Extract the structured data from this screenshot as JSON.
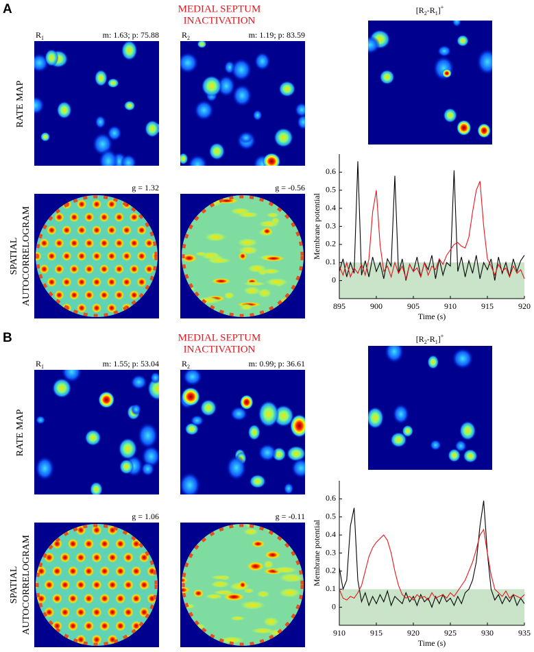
{
  "panels": [
    {
      "label": "A",
      "title_lines": [
        "MEDIAL SEPTUM",
        "INACTIVATION"
      ],
      "diff_title": [
        {
          "t": "[R"
        },
        {
          "t": "2",
          "pos": "sub"
        },
        {
          "t": "-R"
        },
        {
          "t": "1",
          "pos": "sub"
        },
        {
          "t": "]"
        },
        {
          "t": "+",
          "pos": "sup"
        }
      ],
      "row_labels": [
        [
          "RATE MAP"
        ],
        [
          "SPATIAL",
          "AUTOCORRELOGRAM"
        ]
      ],
      "maps": [
        {
          "name": [
            {
              "t": "R"
            },
            {
              "t": "1",
              "pos": "sub"
            }
          ],
          "stats": "m: 1.63; p: 75.88",
          "autocorr": "g = 1.32"
        },
        {
          "name": [
            {
              "t": "R"
            },
            {
              "t": "2",
              "pos": "sub"
            }
          ],
          "stats": "m: 1.19; p: 83.59",
          "autocorr": "g = -0.56"
        }
      ]
    },
    {
      "label": "B",
      "title_lines": [
        "MEDIAL SEPTUM",
        "INACTIVATION"
      ],
      "diff_title": [
        {
          "t": "[R"
        },
        {
          "t": "2",
          "pos": "sub"
        },
        {
          "t": "-R"
        },
        {
          "t": "1",
          "pos": "sub"
        },
        {
          "t": "]"
        },
        {
          "t": "+",
          "pos": "sup"
        }
      ],
      "row_labels": [
        [
          "RATE MAP"
        ],
        [
          "SPATIAL",
          "AUTOCORRELOGRAM"
        ]
      ],
      "maps": [
        {
          "name": [
            {
              "t": "R"
            },
            {
              "t": "1",
              "pos": "sub"
            }
          ],
          "stats": "m: 1.55; p: 53.04",
          "autocorr": "g = 1.06"
        },
        {
          "name": [
            {
              "t": "R"
            },
            {
              "t": "2",
              "pos": "sub"
            }
          ],
          "stats": "m: 0.99; p: 36.61",
          "autocorr": "g = -0.11"
        }
      ]
    }
  ],
  "chart_data": [
    {
      "type": "line",
      "xlabel": "Time (s)",
      "ylabel": "Membrane potential",
      "xlim": [
        895,
        920
      ],
      "xticks": [
        895,
        900,
        905,
        910,
        915,
        920
      ],
      "ylim": [
        -0.1,
        0.7
      ],
      "yticks": [
        0,
        0.1,
        0.2,
        0.3,
        0.4,
        0.5,
        0.6
      ],
      "shade": {
        "range": [
          -0.1,
          0.1
        ],
        "color": "#c9e4c9"
      },
      "x": [
        895,
        895.5,
        896,
        896.5,
        897,
        897.5,
        898,
        898.5,
        899,
        899.5,
        900,
        900.5,
        901,
        901.5,
        902,
        902.5,
        903,
        903.5,
        904,
        904.5,
        905,
        905.5,
        906,
        906.5,
        907,
        907.5,
        908,
        908.5,
        909,
        909.5,
        910,
        910.5,
        911,
        911.5,
        912,
        912.5,
        913,
        913.5,
        914,
        914.5,
        915,
        915.5,
        916,
        916.5,
        917,
        917.5,
        918,
        918.5,
        919,
        919.5,
        920
      ],
      "series": [
        {
          "color": "#000000",
          "values": [
            0.05,
            0.12,
            0.02,
            0.1,
            0.04,
            0.66,
            0.03,
            0.11,
            0.02,
            0.13,
            0.05,
            0.1,
            0.01,
            0.12,
            0.08,
            0.58,
            0.04,
            0.12,
            0.0,
            0.09,
            0.05,
            0.13,
            0.02,
            0.1,
            0.06,
            0.14,
            0.01,
            0.12,
            0.03,
            0.1,
            0.08,
            0.61,
            0.05,
            0.13,
            0.02,
            0.11,
            0.04,
            0.14,
            0.01,
            0.1,
            0.06,
            0.12,
            0.0,
            0.13,
            0.04,
            0.1,
            0.02,
            0.12,
            0.05,
            0.11,
            0.14
          ]
        },
        {
          "color": "#e8141b",
          "values": [
            0.08,
            0.03,
            0.1,
            0.02,
            0.07,
            0.04,
            0.09,
            0.03,
            0.12,
            0.38,
            0.5,
            0.2,
            0.05,
            0.08,
            0.02,
            0.1,
            0.04,
            0.08,
            0.01,
            0.09,
            0.05,
            0.07,
            0.02,
            0.1,
            0.03,
            0.08,
            0.06,
            0.12,
            0.09,
            0.14,
            0.17,
            0.2,
            0.21,
            0.19,
            0.18,
            0.24,
            0.38,
            0.5,
            0.55,
            0.3,
            0.12,
            0.08,
            0.03,
            0.09,
            0.05,
            0.07,
            0.02,
            0.08,
            0.04,
            0.06,
            0.01
          ]
        }
      ]
    },
    {
      "type": "line",
      "xlabel": "Time (s)",
      "ylabel": "Membrane potential",
      "xlim": [
        910,
        935
      ],
      "xticks": [
        910,
        915,
        920,
        925,
        930,
        935
      ],
      "ylim": [
        -0.1,
        0.7
      ],
      "yticks": [
        0,
        0.1,
        0.2,
        0.3,
        0.4,
        0.5,
        0.6
      ],
      "shade": {
        "range": [
          -0.1,
          0.1
        ],
        "color": "#c9e4c9"
      },
      "x": [
        910,
        910.5,
        911,
        911.5,
        912,
        912.5,
        913,
        913.5,
        914,
        914.5,
        915,
        915.5,
        916,
        916.5,
        917,
        917.5,
        918,
        918.5,
        919,
        919.5,
        920,
        920.5,
        921,
        921.5,
        922,
        922.5,
        923,
        923.5,
        924,
        924.5,
        925,
        925.5,
        926,
        926.5,
        927,
        927.5,
        928,
        928.5,
        929,
        929.5,
        930,
        930.5,
        931,
        931.5,
        932,
        932.5,
        933,
        933.5,
        934,
        934.5,
        935
      ],
      "series": [
        {
          "color": "#000000",
          "values": [
            0.22,
            0.1,
            0.15,
            0.45,
            0.55,
            0.15,
            0.03,
            0.08,
            0.01,
            0.06,
            0.02,
            0.07,
            0.03,
            0.09,
            0.01,
            0.06,
            0.04,
            0.02,
            0.08,
            0.03,
            0.06,
            0.01,
            0.07,
            0.03,
            0.05,
            0.0,
            0.06,
            0.02,
            0.07,
            0.03,
            0.05,
            0.01,
            0.06,
            0.02,
            0.08,
            0.1,
            0.15,
            0.25,
            0.45,
            0.59,
            0.3,
            0.1,
            0.04,
            0.07,
            0.02,
            0.06,
            0.03,
            0.07,
            0.01,
            0.05,
            0.02
          ]
        },
        {
          "color": "#e8141b",
          "values": [
            0.1,
            0.05,
            0.04,
            0.06,
            0.05,
            0.08,
            0.12,
            0.2,
            0.28,
            0.33,
            0.36,
            0.38,
            0.4,
            0.37,
            0.3,
            0.2,
            0.12,
            0.07,
            0.05,
            0.06,
            0.04,
            0.07,
            0.05,
            0.06,
            0.04,
            0.08,
            0.05,
            0.06,
            0.07,
            0.05,
            0.08,
            0.06,
            0.09,
            0.12,
            0.15,
            0.2,
            0.25,
            0.32,
            0.4,
            0.43,
            0.3,
            0.18,
            0.1,
            0.08,
            0.06,
            0.09,
            0.05,
            0.07,
            0.06,
            0.05,
            0.07
          ]
        }
      ]
    }
  ]
}
